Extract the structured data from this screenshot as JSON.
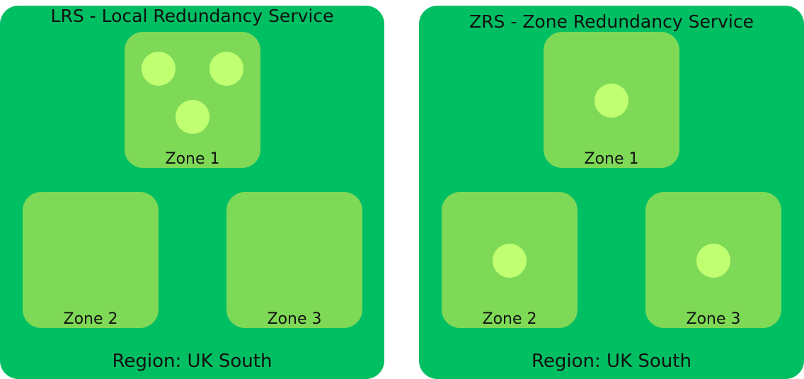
{
  "colors": {
    "background": "#ffffff",
    "region_fill": "#00bf63",
    "zone_fill": "#7ed957",
    "replica_fill": "#c1ff72",
    "text": "#111111"
  },
  "panels": [
    {
      "title": "LRS - Local Redundancy Service",
      "region_label": "Region: UK South",
      "zones": [
        {
          "label": "Zone 1",
          "replicas": 3
        },
        {
          "label": "Zone 2",
          "replicas": 0
        },
        {
          "label": "Zone 3",
          "replicas": 0
        }
      ]
    },
    {
      "title": "ZRS - Zone Redundancy Service",
      "region_label": "Region: UK South",
      "zones": [
        {
          "label": "Zone 1",
          "replicas": 1
        },
        {
          "label": "Zone 2",
          "replicas": 1
        },
        {
          "label": "Zone 3",
          "replicas": 1
        }
      ]
    }
  ]
}
